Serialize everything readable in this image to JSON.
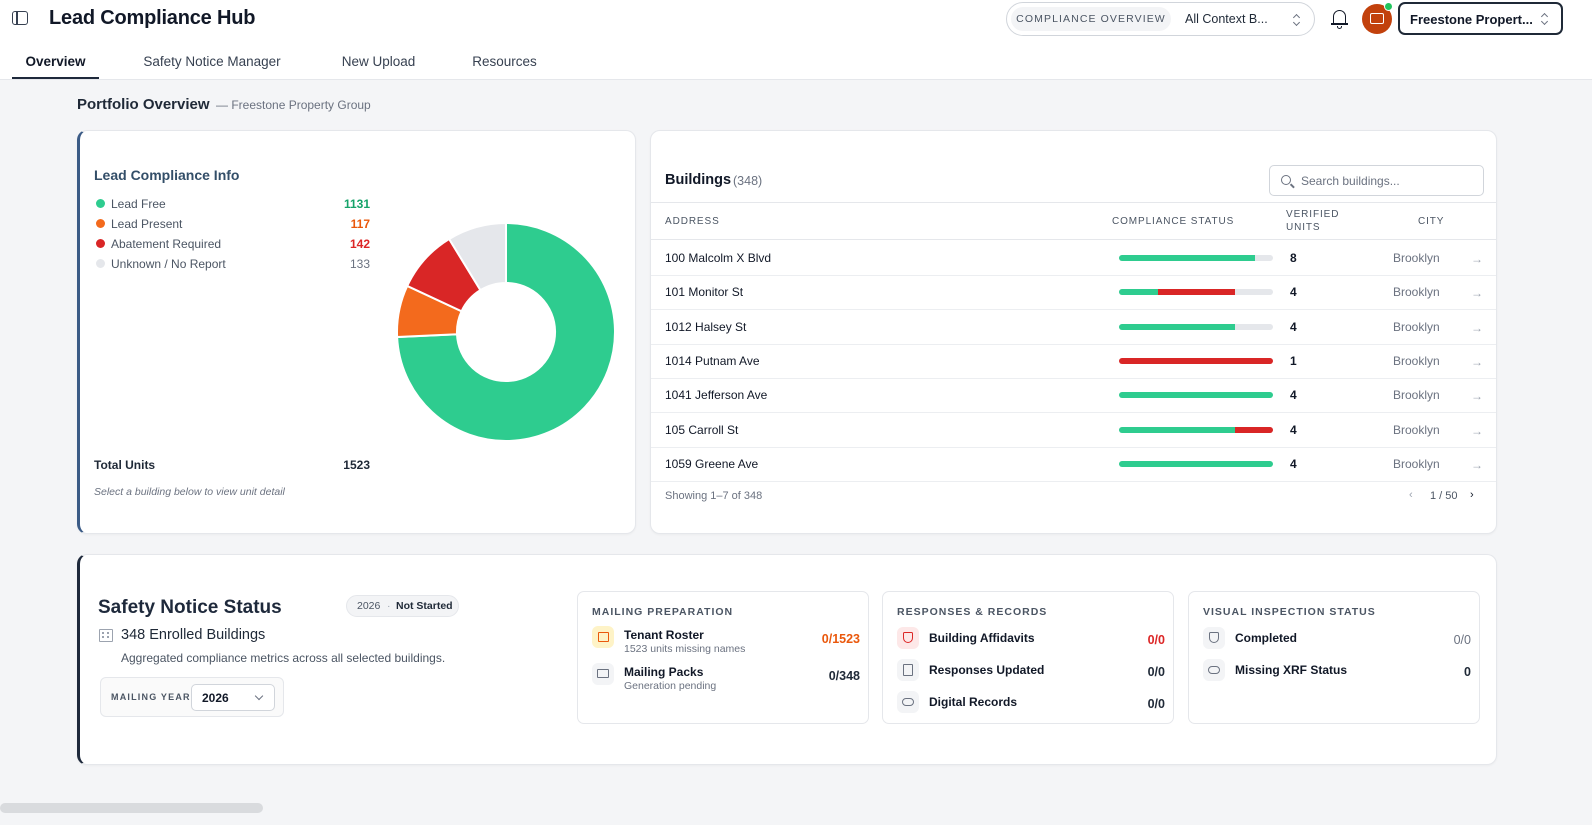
{
  "header": {
    "app_title": "Lead Compliance Hub",
    "context_segment": "COMPLIANCE OVERVIEW",
    "context_value": "All Context B...",
    "portfolio_select": "Freestone Propert..."
  },
  "tabs": [
    {
      "label": "Overview"
    },
    {
      "label": "Safety Notice Manager"
    },
    {
      "label": "New Upload"
    },
    {
      "label": "Resources"
    }
  ],
  "page": {
    "title": "Portfolio Overview",
    "subtitle": "— Freestone Property Group"
  },
  "lead_info": {
    "title": "Lead Compliance Info",
    "legend": [
      {
        "label": "Lead Free",
        "value": "1131",
        "color": "#2ecc8f"
      },
      {
        "label": "Lead Present",
        "value": "117",
        "color": "#f36a1d"
      },
      {
        "label": "Abatement Required",
        "value": "142",
        "color": "#d92626"
      },
      {
        "label": "Unknown / No Report",
        "value": "133",
        "color": "#e5e7eb"
      }
    ],
    "total_label": "Total Units",
    "total_value": "1523",
    "hint": "Select a building below to view unit detail"
  },
  "chart_data": {
    "type": "pie",
    "title": "Lead Compliance Info",
    "categories": [
      "Lead Free",
      "Lead Present",
      "Abatement Required",
      "Unknown / No Report"
    ],
    "values": [
      1131,
      117,
      142,
      133
    ],
    "colors": [
      "#2ecc8f",
      "#f36a1d",
      "#d92626",
      "#e5e7eb"
    ],
    "hole": 0.45
  },
  "buildings": {
    "title": "Buildings",
    "count": "(348)",
    "search_placeholder": "Search buildings...",
    "columns": {
      "address": "ADDRESS",
      "status": "COMPLIANCE STATUS",
      "verified_1": "VERIFIED",
      "verified_2": "UNITS",
      "city": "CITY"
    },
    "rows": [
      {
        "address": "100 Malcolm X Blvd",
        "verified_units": "8",
        "city": "Brooklyn",
        "status": {
          "lead_free": 0.88,
          "abatement": 0
        }
      },
      {
        "address": "101 Monitor St",
        "verified_units": "4",
        "city": "Brooklyn",
        "status": {
          "lead_free": 0.25,
          "abatement": 0.5
        }
      },
      {
        "address": "1012 Halsey St",
        "verified_units": "4",
        "city": "Brooklyn",
        "status": {
          "lead_free": 0.75,
          "abatement": 0
        }
      },
      {
        "address": "1014 Putnam Ave",
        "verified_units": "1",
        "city": "Brooklyn",
        "status": {
          "lead_free": 0,
          "abatement": 1
        }
      },
      {
        "address": "1041 Jefferson Ave",
        "verified_units": "4",
        "city": "Brooklyn",
        "status": {
          "lead_free": 1,
          "abatement": 0
        }
      },
      {
        "address": "105 Carroll St",
        "verified_units": "4",
        "city": "Brooklyn",
        "status": {
          "lead_free": 0.75,
          "abatement": 0.25
        }
      },
      {
        "address": "1059 Greene Ave",
        "verified_units": "4",
        "city": "Brooklyn",
        "status": {
          "lead_free": 1,
          "abatement": 0
        }
      }
    ],
    "footer": "Showing 1–7 of 348",
    "page": "1 / 50"
  },
  "safety": {
    "title": "Safety Notice Status",
    "badge_year": "2026",
    "badge_sep": "·",
    "badge_status": "Not Started",
    "enrolled": "348 Enrolled Buildings",
    "description": "Aggregated compliance metrics across all selected buildings.",
    "mailing_year_label": "MAILING YEAR",
    "mailing_year_value": "2026",
    "mailing": {
      "title": "MAILING PREPARATION",
      "items": [
        {
          "name": "Tenant Roster",
          "sub": "1523 units missing names",
          "value": "0/1523"
        },
        {
          "name": "Mailing Packs",
          "sub": "Generation pending",
          "value": "0/348"
        }
      ]
    },
    "responses": {
      "title": "RESPONSES & RECORDS",
      "items": [
        {
          "name": "Building Affidavits",
          "value": "0/0"
        },
        {
          "name": "Responses Updated",
          "value": "0/0"
        },
        {
          "name": "Digital Records",
          "value": "0/0"
        }
      ]
    },
    "inspection": {
      "title": "VISUAL INSPECTION STATUS",
      "items": [
        {
          "name": "Completed",
          "value": "0/0"
        },
        {
          "name": "Missing XRF Status",
          "value": "0"
        }
      ]
    }
  }
}
